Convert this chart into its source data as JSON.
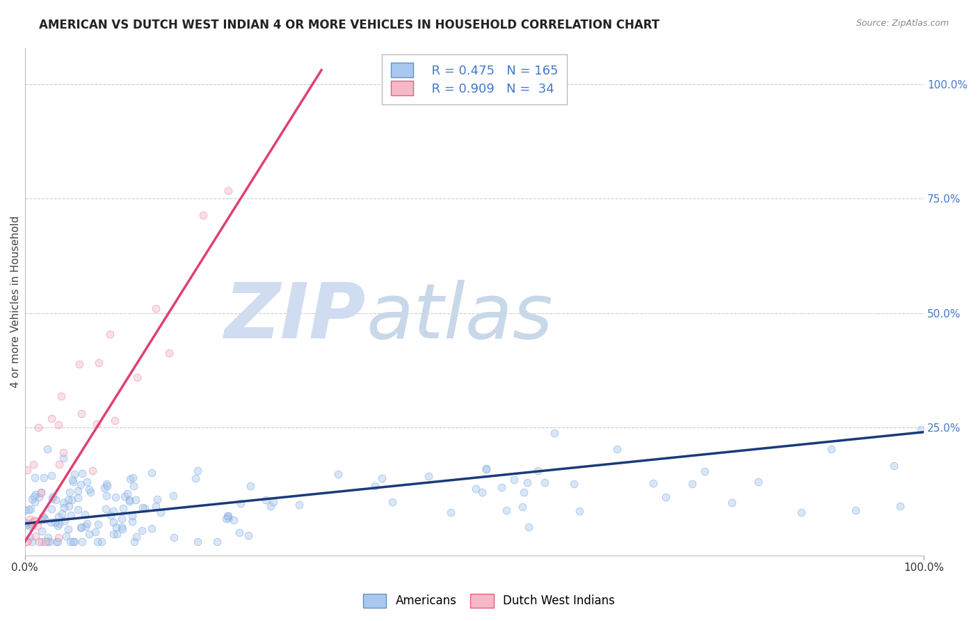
{
  "title": "AMERICAN VS DUTCH WEST INDIAN 4 OR MORE VEHICLES IN HOUSEHOLD CORRELATION CHART",
  "source": "Source: ZipAtlas.com",
  "ylabel": "4 or more Vehicles in Household",
  "xlim": [
    0,
    100
  ],
  "ylim": [
    -3,
    108
  ],
  "legend_r1": "R = 0.475",
  "legend_n1": "N = 165",
  "legend_r2": "R = 0.909",
  "legend_n2": " 34",
  "watermark_zip": "ZIP",
  "watermark_atlas": "atlas",
  "blue_color": "#A8C8F0",
  "pink_color": "#F5B8C8",
  "blue_edge_color": "#6090C8",
  "pink_edge_color": "#E06080",
  "blue_line_color": "#1A3A7A",
  "pink_line_color": "#E04070",
  "grid_color": "#CCCCCC",
  "bg_color": "#FFFFFF",
  "title_fontsize": 12,
  "label_fontsize": 11,
  "tick_fontsize": 11,
  "legend_fontsize": 13,
  "watermark_fontsize_zip": 80,
  "watermark_fontsize_atlas": 80,
  "watermark_color_zip": "#D0DCF0",
  "watermark_color_atlas": "#C8D8E8",
  "scatter_size": 60,
  "scatter_alpha": 0.45,
  "legend_text_color": "#4477CC",
  "right_tick_color": "#4477CC",
  "blue_reg_x0": 0,
  "blue_reg_y0": 4,
  "blue_reg_x1": 100,
  "blue_reg_y1": 24,
  "pink_reg_x0": 0,
  "pink_reg_y0": 0,
  "pink_reg_x1": 32,
  "pink_reg_y1": 100
}
